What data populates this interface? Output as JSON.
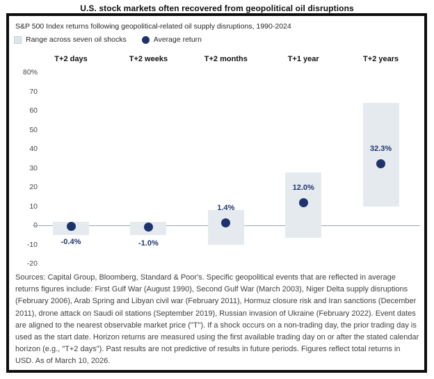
{
  "title": "U.S. stock markets often recovered from geopolitical oil disruptions",
  "subtitle": "S&P 500 Index returns following geopolitical-related oil supply disruptions, 1990-2024",
  "legend": {
    "range_label": "Range across seven oil shocks",
    "average_label": "Average return"
  },
  "colors": {
    "navy": "#1e336e",
    "bar_fill": "#e4eaee",
    "zero_line": "#9aa7b2"
  },
  "chart_data": {
    "type": "range-bar-with-dot",
    "title": "S&P 500 Index returns following geopolitical-related oil supply disruptions, 1990-2024",
    "categories": [
      "T+2 days",
      "T+2 weeks",
      "T+2 months",
      "T+1 year",
      "T+2 years"
    ],
    "series": [
      {
        "name": "Range across seven oil shocks",
        "high": [
          2,
          2,
          8,
          27.5,
          64
        ],
        "low": [
          -5,
          -5,
          -10,
          -6.5,
          10
        ]
      },
      {
        "name": "Average return",
        "values": [
          -0.4,
          -1.0,
          1.4,
          12.0,
          32.3
        ]
      }
    ],
    "value_labels": [
      "-0.4%",
      "-1.0%",
      "1.4%",
      "12.0%",
      "32.3%"
    ],
    "y_ticks": [
      {
        "label": "80%",
        "value": 80
      },
      {
        "label": "70",
        "value": 70
      },
      {
        "label": "60",
        "value": 60
      },
      {
        "label": "50",
        "value": 50
      },
      {
        "label": "40",
        "value": 40
      },
      {
        "label": "30",
        "value": 30
      },
      {
        "label": "20",
        "value": 20
      },
      {
        "label": "10",
        "value": 10
      },
      {
        "label": "0",
        "value": 0
      },
      {
        "label": "-10",
        "value": -10
      },
      {
        "label": "-20",
        "value": -20
      }
    ],
    "ylim": [
      -20,
      80
    ],
    "grid": false,
    "legend_position": "top-left"
  },
  "footer": "Sources: Capital Group, Bloomberg, Standard & Poor's. Specific geopolitical events that are reflected in average returns figures include: First Gulf War (August 1990), Second Gulf War (March 2003), Niger Delta supply disruptions (February 2006), Arab Spring and Libyan civil war (February 2011), Hormuz closure risk and Iran sanctions (December 2011), drone attack on Saudi oil stations (September 2019), Russian invasion of Ukraine (February 2022). Event dates are aligned to the nearest observable market price (\"T\"). If a shock occurs on a non-trading day, the prior trading day is used as the start date. Horizon returns are measured using the first available trading day on or after the stated calendar horizon (e.g., \"T+2 days\"). Past results are not predictive of results in future periods. Figures reflect total returns in USD. As of March 10, 2026."
}
